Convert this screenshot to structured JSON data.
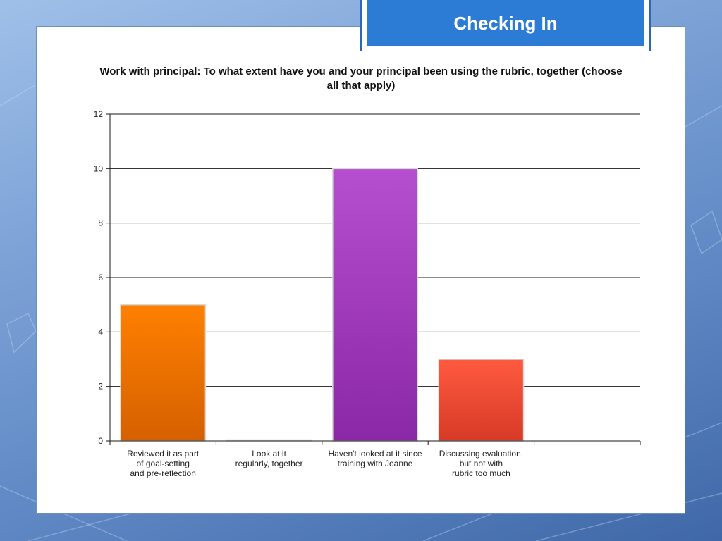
{
  "slide": {
    "title": "Checking In"
  },
  "chart_data": {
    "type": "bar",
    "title": "Work with principal: To what extent have you and your principal been using the rubric, together (choose all that apply)",
    "categories": [
      [
        "Reviewed it as part",
        "of goal-setting",
        "and pre-reflection"
      ],
      [
        "Look at it",
        "regularly, together"
      ],
      [
        "Haven't looked at it since",
        "training with Joanne"
      ],
      [
        "Discussing evaluation,",
        "but not with",
        "rubric too much"
      ]
    ],
    "values": [
      5,
      0,
      10,
      3
    ],
    "bar_colors": [
      [
        "#ff8000",
        "#d56000"
      ],
      [
        "#9fa6b0",
        "#9fa6b0"
      ],
      [
        "#b64ed0",
        "#8a28a6"
      ],
      [
        "#ff5a40",
        "#d63a26"
      ]
    ],
    "ylim": [
      0,
      12
    ],
    "yticks": [
      0,
      2,
      4,
      6,
      8,
      10,
      12
    ],
    "grid": true,
    "xlabel": "",
    "ylabel": ""
  }
}
